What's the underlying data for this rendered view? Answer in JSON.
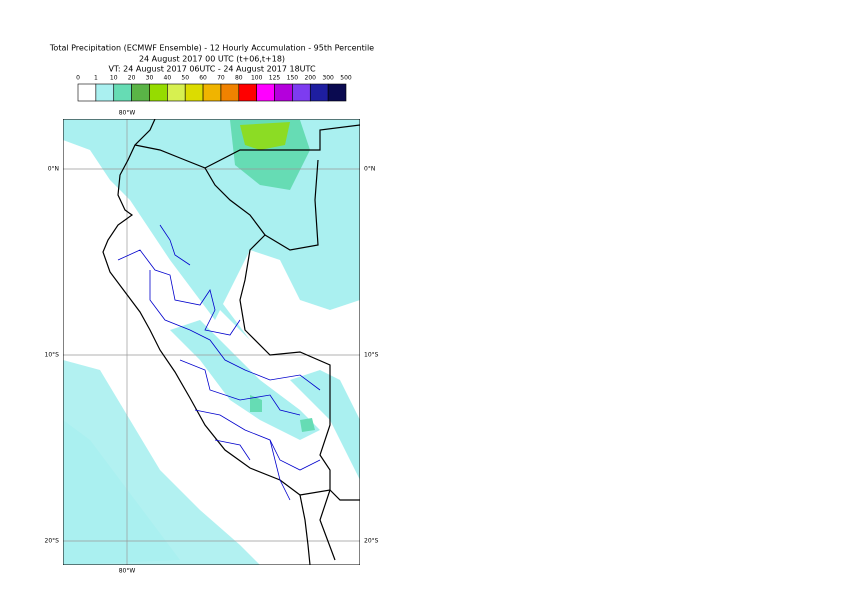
{
  "title": {
    "line1": "Total Precipitation (ECMWF Ensemble) - 12 Hourly Accumulation - 95th Percentile",
    "line2": "24 August 2017 00 UTC (t+06,t+18)",
    "line3": "VT: 24 August 2017 06UTC - 24 August 2017 18UTC"
  },
  "legend": {
    "bounds": [
      0,
      1,
      10,
      20,
      30,
      40,
      50,
      60,
      70,
      80,
      100,
      125,
      150,
      200,
      300,
      500
    ],
    "colors": [
      "#ffffff",
      "#aaf0f0",
      "#66dcb4",
      "#5ab446",
      "#96dc00",
      "#d7f050",
      "#dcdc00",
      "#f0b400",
      "#f08200",
      "#ff0000",
      "#ff00ff",
      "#b400dc",
      "#7d3cf0",
      "#1e1ea0",
      "#0a0a50"
    ]
  },
  "map": {
    "lat_ticks": [
      {
        "value": 0,
        "label": "0°N"
      },
      {
        "value": -10,
        "label": "10°S"
      },
      {
        "value": -20,
        "label": "20°S"
      }
    ],
    "lon_ticks": [
      {
        "value": -80,
        "label": "80°W"
      }
    ]
  }
}
